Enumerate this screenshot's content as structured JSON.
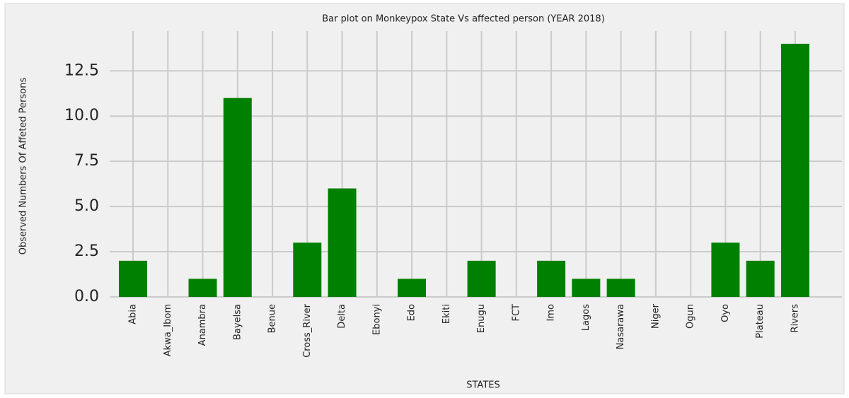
{
  "chart_data": {
    "type": "bar",
    "title": "Bar plot on Monkeypox State Vs affected person (YEAR 2018)",
    "x_label": "STATES",
    "y_label": "Observed Numbers Of Affeted Persons",
    "categories": [
      "Abia",
      "Akwa_Ibom",
      "Anambra",
      "Bayelsa",
      "Benue",
      "Cross_River",
      "Delta",
      "Ebonyi",
      "Edo",
      "Ekiti",
      "Enugu",
      "FCT",
      "Imo",
      "Lagos",
      "Nasarawa",
      "Niger",
      "Ogun",
      "Oyo",
      "Plateau",
      "Rivers"
    ],
    "values": [
      2,
      0,
      1,
      11,
      0,
      3,
      6,
      0,
      1,
      0,
      2,
      0,
      2,
      1,
      1,
      0,
      0,
      3,
      2,
      14
    ],
    "color": "#008000",
    "ylim": [
      0,
      14.7
    ],
    "yticks": [
      {
        "value": 0,
        "label": "0.0"
      },
      2.5,
      {
        "value": 5,
        "label": "5.0"
      },
      7.5,
      {
        "value": 10,
        "label": "10.0"
      },
      12.5
    ],
    "grid": true
  }
}
